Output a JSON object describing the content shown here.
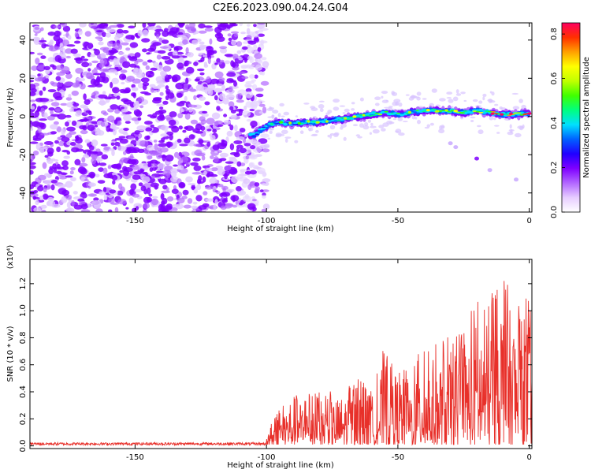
{
  "title": "C2E6.2023.090.04.24.G04",
  "chart_data": [
    {
      "type": "heatmap",
      "xlabel": "Height of straight line (km)",
      "ylabel": "Frequency (Hz)",
      "xlim": [
        -190,
        1
      ],
      "ylim": [
        -50,
        49
      ],
      "xticks": [
        -150,
        -100,
        -50,
        0
      ],
      "yticks": [
        -40,
        -20,
        0,
        20,
        40
      ],
      "colorbar": {
        "label": "Normalized spectral amplitude",
        "range": [
          0.0,
          0.85
        ],
        "ticks": [
          0.0,
          0.2,
          0.4,
          0.6,
          0.8
        ],
        "colors": [
          "#ffffff",
          "#e6ccff",
          "#b266ff",
          "#7f00ff",
          "#2000ff",
          "#0060ff",
          "#00e0ff",
          "#00ff80",
          "#40ff00",
          "#c0ff00",
          "#ffff00",
          "#ffa000",
          "#ff3000",
          "#ff0060"
        ]
      },
      "signal_ridge": {
        "x": [
          -105,
          -100,
          -95,
          -90,
          -85,
          -80,
          -75,
          -70,
          -65,
          -60,
          -55,
          -50,
          -45,
          -40,
          -35,
          -30,
          -25,
          -20,
          -15,
          -10,
          -5,
          0
        ],
        "frequency": [
          -10,
          -5,
          -3,
          -4,
          -3,
          -3,
          -2,
          -1,
          0,
          1,
          2,
          1,
          2,
          3,
          3,
          3,
          2,
          3,
          2,
          1,
          1,
          2
        ],
        "peak_amplitude": [
          0.3,
          0.35,
          0.4,
          0.45,
          0.45,
          0.5,
          0.45,
          0.5,
          0.5,
          0.55,
          0.55,
          0.5,
          0.5,
          0.55,
          0.55,
          0.5,
          0.6,
          0.6,
          0.7,
          0.8,
          0.75,
          0.85
        ]
      },
      "noise_region_x": [
        -190,
        -100
      ]
    },
    {
      "type": "line",
      "xlabel": "Height of straight line (km)",
      "ylabel": "SNR (10 * v/v)",
      "multiplier": "(x10⁴)",
      "xlim": [
        -190,
        1
      ],
      "ylim": [
        -0.02,
        1.38
      ],
      "xticks": [
        -150,
        -100,
        -50,
        0
      ],
      "yticks": [
        0.0,
        0.2,
        0.4,
        0.6,
        0.8,
        1.0,
        1.2
      ],
      "line_color": "#e8302a",
      "envelope_x": [
        -190,
        -100,
        -98,
        -95,
        -90,
        -85,
        -80,
        -75,
        -70,
        -65,
        -60,
        -55,
        -50,
        -45,
        -40,
        -35,
        -30,
        -25,
        -20,
        -15,
        -12,
        -10,
        -5,
        0
      ],
      "envelope_max": [
        0.03,
        0.05,
        0.18,
        0.28,
        0.45,
        0.38,
        0.42,
        0.4,
        0.45,
        0.5,
        0.42,
        0.75,
        0.62,
        0.55,
        0.78,
        0.75,
        0.82,
        0.85,
        1.12,
        1.05,
        1.38,
        1.3,
        1.1,
        1.1
      ]
    }
  ]
}
